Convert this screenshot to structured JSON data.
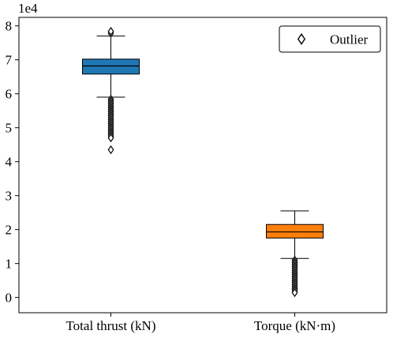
{
  "chart_data": {
    "type": "box",
    "categories": [
      "Total thrust (kN)",
      "Torque (kN·m)"
    ],
    "scale_label": "1e4",
    "ylim": [
      -0.45,
      8.25
    ],
    "yticks": [
      0,
      1,
      2,
      3,
      4,
      5,
      6,
      7,
      8
    ],
    "ytick_labels": [
      "0",
      "1",
      "2",
      "3",
      "4",
      "5",
      "6",
      "7",
      "8"
    ],
    "boxes": [
      {
        "category": "Total thrust (kN)",
        "color": "#1f77b4",
        "whisker_low": 5.9,
        "q1": 6.58,
        "median": 6.82,
        "q3": 7.02,
        "whisker_high": 7.7,
        "outliers": [
          7.78,
          7.84,
          5.84,
          5.78,
          5.72,
          5.66,
          5.6,
          5.54,
          5.48,
          5.42,
          5.36,
          5.3,
          5.24,
          5.18,
          5.12,
          5.06,
          5.0,
          4.94,
          4.88,
          4.82,
          4.76,
          4.7,
          4.35
        ]
      },
      {
        "category": "Torque (kN·m)",
        "color": "#ff7f0e",
        "whisker_low": 1.15,
        "q1": 1.75,
        "median": 1.93,
        "q3": 2.15,
        "whisker_high": 2.55,
        "outliers": [
          1.1,
          1.04,
          0.98,
          0.92,
          0.86,
          0.8,
          0.74,
          0.68,
          0.62,
          0.56,
          0.5,
          0.44,
          0.38,
          0.32,
          0.26,
          0.2,
          0.14
        ]
      }
    ],
    "legend": {
      "label": "Outlier",
      "position": "top-right"
    },
    "grid": false
  }
}
